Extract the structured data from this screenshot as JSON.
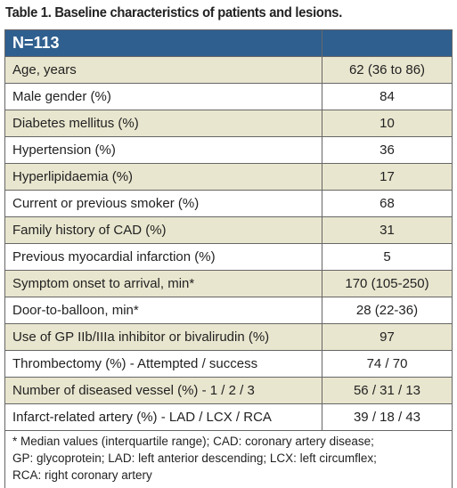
{
  "title": "Table 1. Baseline characteristics of patients and lesions.",
  "table": {
    "header": "N=113",
    "rows": [
      [
        "Age, years",
        "62 (36 to 86)"
      ],
      [
        "Male gender (%)",
        "84"
      ],
      [
        "Diabetes mellitus (%)",
        "10"
      ],
      [
        "Hypertension (%)",
        "36"
      ],
      [
        "Hyperlipidaemia (%)",
        "17"
      ],
      [
        "Current or previous smoker (%)",
        "68"
      ],
      [
        "Family history of CAD (%)",
        "31"
      ],
      [
        "Previous myocardial infarction (%)",
        "5"
      ],
      [
        "Symptom onset to arrival, min*",
        "170 (105-250)"
      ],
      [
        "Door-to-balloon, min*",
        "28 (22-36)"
      ],
      [
        "Use of GP IIb/IIIa inhibitor or bivalirudin (%)",
        "97"
      ],
      [
        "Thrombectomy (%) - Attempted / success",
        "74 / 70"
      ],
      [
        "Number of diseased vessel (%) - 1 / 2 / 3",
        "56 / 31 / 13"
      ],
      [
        "Infarct-related artery (%) - LAD / LCX / RCA",
        "39 / 18 / 43"
      ]
    ],
    "footnote": [
      "* Median values (interquartile range); CAD: coronary artery disease;",
      "GP: glycoprotein; LAD: left anterior descending; LCX: left circumflex;",
      "RCA: right coronary artery"
    ]
  }
}
